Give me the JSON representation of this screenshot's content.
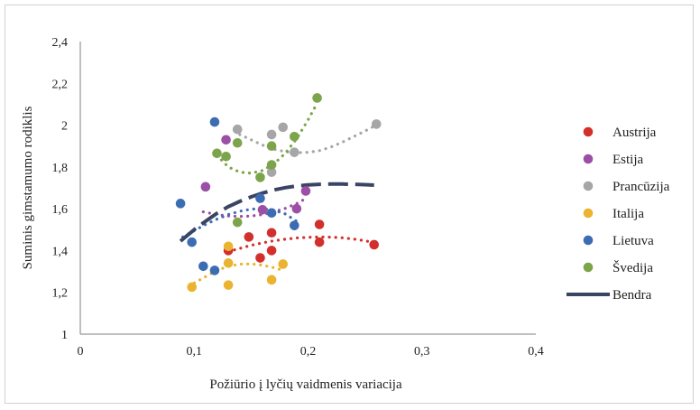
{
  "chart_data": {
    "type": "scatter",
    "title": "",
    "xlabel": "Požiūrio į lyčių vaidmenis variacija",
    "ylabel": "Suminis gimstamumo rodiklis",
    "xlim": [
      0,
      0.4
    ],
    "ylim": [
      1,
      2.4
    ],
    "x_ticks": [
      "0",
      "0,1",
      "0,2",
      "0,3",
      "0,4"
    ],
    "y_ticks": [
      "1",
      "1,2",
      "1,4",
      "1,6",
      "1,8",
      "2",
      "2,2",
      "2,4"
    ],
    "x_tick_values": [
      0,
      0.1,
      0.2,
      0.3,
      0.4
    ],
    "y_tick_values": [
      1,
      1.2,
      1.4,
      1.6,
      1.8,
      2,
      2.2,
      2.4
    ],
    "grid": false,
    "legend_position": "right",
    "series": [
      {
        "name": "Austrija",
        "color": "#d2302c",
        "points": [
          [
            0.13,
            1.4
          ],
          [
            0.148,
            1.465
          ],
          [
            0.158,
            1.365
          ],
          [
            0.168,
            1.485
          ],
          [
            0.168,
            1.4
          ],
          [
            0.21,
            1.525
          ],
          [
            0.21,
            1.44
          ],
          [
            0.258,
            1.428
          ]
        ],
        "trend": [
          [
            0.13,
            1.395
          ],
          [
            0.14,
            1.41
          ],
          [
            0.15,
            1.425
          ],
          [
            0.16,
            1.437
          ],
          [
            0.17,
            1.447
          ],
          [
            0.18,
            1.454
          ],
          [
            0.19,
            1.46
          ],
          [
            0.2,
            1.463
          ],
          [
            0.21,
            1.465
          ],
          [
            0.22,
            1.464
          ],
          [
            0.23,
            1.461
          ],
          [
            0.24,
            1.455
          ],
          [
            0.25,
            1.447
          ],
          [
            0.258,
            1.438
          ]
        ]
      },
      {
        "name": "Estija",
        "color": "#9b4fa5",
        "points": [
          [
            0.11,
            1.705
          ],
          [
            0.128,
            1.93
          ],
          [
            0.16,
            1.595
          ],
          [
            0.19,
            1.6
          ],
          [
            0.198,
            1.685
          ]
        ],
        "trend": [
          [
            0.108,
            1.585
          ],
          [
            0.12,
            1.572
          ],
          [
            0.13,
            1.565
          ],
          [
            0.14,
            1.563
          ],
          [
            0.15,
            1.565
          ],
          [
            0.16,
            1.572
          ],
          [
            0.17,
            1.585
          ],
          [
            0.18,
            1.602
          ],
          [
            0.19,
            1.625
          ],
          [
            0.2,
            1.655
          ]
        ]
      },
      {
        "name": "Prancūzija",
        "color": "#a6a6a6",
        "points": [
          [
            0.138,
            1.98
          ],
          [
            0.168,
            1.955
          ],
          [
            0.178,
            1.99
          ],
          [
            0.168,
            1.775
          ],
          [
            0.188,
            1.87
          ],
          [
            0.26,
            2.005
          ]
        ],
        "trend": [
          [
            0.14,
            1.955
          ],
          [
            0.15,
            1.93
          ],
          [
            0.16,
            1.905
          ],
          [
            0.17,
            1.885
          ],
          [
            0.18,
            1.873
          ],
          [
            0.19,
            1.868
          ],
          [
            0.2,
            1.87
          ],
          [
            0.21,
            1.878
          ],
          [
            0.22,
            1.895
          ],
          [
            0.23,
            1.918
          ],
          [
            0.24,
            1.945
          ],
          [
            0.25,
            1.972
          ],
          [
            0.258,
            1.995
          ]
        ]
      },
      {
        "name": "Italija",
        "color": "#eab430",
        "points": [
          [
            0.098,
            1.225
          ],
          [
            0.13,
            1.42
          ],
          [
            0.13,
            1.235
          ],
          [
            0.13,
            1.34
          ],
          [
            0.168,
            1.26
          ],
          [
            0.178,
            1.335
          ]
        ],
        "trend": [
          [
            0.1,
            1.245
          ],
          [
            0.11,
            1.275
          ],
          [
            0.12,
            1.305
          ],
          [
            0.13,
            1.325
          ],
          [
            0.14,
            1.335
          ],
          [
            0.15,
            1.336
          ],
          [
            0.16,
            1.33
          ],
          [
            0.17,
            1.318
          ],
          [
            0.178,
            1.305
          ]
        ]
      },
      {
        "name": "Lietuva",
        "color": "#3c6db3",
        "points": [
          [
            0.088,
            1.625
          ],
          [
            0.098,
            1.44
          ],
          [
            0.108,
            1.325
          ],
          [
            0.118,
            1.305
          ],
          [
            0.118,
            2.015
          ],
          [
            0.158,
            1.65
          ],
          [
            0.168,
            1.58
          ],
          [
            0.188,
            1.52
          ]
        ],
        "trend": [
          [
            0.09,
            1.465
          ],
          [
            0.1,
            1.495
          ],
          [
            0.11,
            1.525
          ],
          [
            0.12,
            1.55
          ],
          [
            0.13,
            1.572
          ],
          [
            0.14,
            1.588
          ],
          [
            0.15,
            1.598
          ],
          [
            0.16,
            1.6
          ],
          [
            0.17,
            1.593
          ],
          [
            0.18,
            1.575
          ],
          [
            0.19,
            1.54
          ]
        ]
      },
      {
        "name": "Švedija",
        "color": "#7ba44b",
        "points": [
          [
            0.12,
            1.865
          ],
          [
            0.128,
            1.85
          ],
          [
            0.138,
            1.915
          ],
          [
            0.138,
            1.535
          ],
          [
            0.158,
            1.75
          ],
          [
            0.168,
            1.9
          ],
          [
            0.168,
            1.81
          ],
          [
            0.188,
            1.945
          ],
          [
            0.208,
            2.13
          ]
        ],
        "trend": [
          [
            0.12,
            1.855
          ],
          [
            0.13,
            1.8
          ],
          [
            0.14,
            1.775
          ],
          [
            0.15,
            1.77
          ],
          [
            0.16,
            1.783
          ],
          [
            0.17,
            1.815
          ],
          [
            0.18,
            1.865
          ],
          [
            0.19,
            1.935
          ],
          [
            0.2,
            2.025
          ],
          [
            0.208,
            2.105
          ]
        ]
      },
      {
        "name": "Bendra",
        "color": "#3a4563",
        "trend": [
          [
            0.088,
            1.445
          ],
          [
            0.1,
            1.5
          ],
          [
            0.11,
            1.54
          ],
          [
            0.12,
            1.578
          ],
          [
            0.13,
            1.61
          ],
          [
            0.14,
            1.635
          ],
          [
            0.15,
            1.657
          ],
          [
            0.16,
            1.675
          ],
          [
            0.17,
            1.69
          ],
          [
            0.18,
            1.701
          ],
          [
            0.19,
            1.709
          ],
          [
            0.2,
            1.714
          ],
          [
            0.21,
            1.717
          ],
          [
            0.22,
            1.718
          ],
          [
            0.23,
            1.718
          ],
          [
            0.24,
            1.717
          ],
          [
            0.25,
            1.715
          ],
          [
            0.258,
            1.713
          ]
        ]
      }
    ]
  }
}
